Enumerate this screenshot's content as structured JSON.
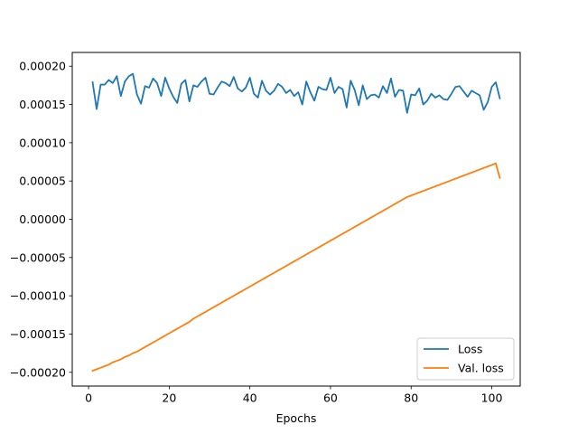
{
  "chart_data": {
    "type": "line",
    "title": "",
    "xlabel": "Epochs",
    "ylabel": "",
    "xlim": [
      -4.05,
      107.05
    ],
    "ylim": [
      -0.000218,
      0.000218
    ],
    "xticks": [
      0,
      20,
      40,
      60,
      80,
      100
    ],
    "xtick_labels": [
      "0",
      "20",
      "40",
      "60",
      "80",
      "100"
    ],
    "yticks": [
      -0.0002,
      -0.00015,
      -0.0001,
      -5e-05,
      0.0,
      5e-05,
      0.0001,
      0.00015,
      0.0002
    ],
    "ytick_labels": [
      "−0.00020",
      "−0.00015",
      "−0.00010",
      "−0.00005",
      "0.00000",
      "0.00005",
      "0.00010",
      "0.00015",
      "0.00020"
    ],
    "grid": false,
    "legend_position": "lower right",
    "x": [
      1,
      2,
      3,
      4,
      5,
      6,
      7,
      8,
      9,
      10,
      11,
      12,
      13,
      14,
      15,
      16,
      17,
      18,
      19,
      20,
      21,
      22,
      23,
      24,
      25,
      26,
      27,
      28,
      29,
      30,
      31,
      32,
      33,
      34,
      35,
      36,
      37,
      38,
      39,
      40,
      41,
      42,
      43,
      44,
      45,
      46,
      47,
      48,
      49,
      50,
      51,
      52,
      53,
      54,
      55,
      56,
      57,
      58,
      59,
      60,
      61,
      62,
      63,
      64,
      65,
      66,
      67,
      68,
      69,
      70,
      71,
      72,
      73,
      74,
      75,
      76,
      77,
      78,
      79,
      80,
      81,
      82,
      83,
      84,
      85,
      86,
      87,
      88,
      89,
      90,
      91,
      92,
      93,
      94,
      95,
      96,
      97,
      98,
      99,
      100,
      101,
      102
    ],
    "series": [
      {
        "name": "Loss",
        "color": "#1f77b4",
        "values": [
          0.000179,
          0.000144,
          0.000176,
          0.000176,
          0.000182,
          0.000178,
          0.000187,
          0.000161,
          0.00018,
          0.000187,
          0.00019,
          0.000163,
          0.000151,
          0.000174,
          0.000172,
          0.000184,
          0.000178,
          0.000161,
          0.000185,
          0.000171,
          0.00016,
          0.000152,
          0.000177,
          0.000182,
          0.000154,
          0.000175,
          0.000173,
          0.00018,
          0.000185,
          0.000164,
          0.000163,
          0.000172,
          0.00018,
          0.000178,
          0.000174,
          0.000186,
          0.000171,
          0.000167,
          0.000172,
          0.000185,
          0.000164,
          0.000159,
          0.000181,
          0.000168,
          0.000163,
          0.000168,
          0.000177,
          0.000173,
          0.000165,
          0.000169,
          0.000161,
          0.000166,
          0.00015,
          0.00018,
          0.000166,
          0.000155,
          0.000173,
          0.00017,
          0.000169,
          0.000185,
          0.000165,
          0.000173,
          0.00017,
          0.000146,
          0.000181,
          0.000169,
          0.000149,
          0.000175,
          0.000157,
          0.000162,
          0.000163,
          0.000159,
          0.000174,
          0.000165,
          0.000184,
          0.00016,
          0.000169,
          0.000168,
          0.000139,
          0.000163,
          0.000162,
          0.000171,
          0.00015,
          0.000155,
          0.000164,
          0.000159,
          0.000162,
          0.000157,
          0.000156,
          0.000164,
          0.000173,
          0.000174,
          0.000167,
          0.00016,
          0.000168,
          0.000165,
          0.000162,
          0.000143,
          0.000153,
          0.000173,
          0.000179,
          0.000158
        ]
      },
      {
        "name": "Val. loss",
        "color": "#ff7f0e",
        "values": [
          -0.000198,
          -0.000196,
          -0.000194,
          -0.000192,
          -0.00019,
          -0.000187,
          -0.000185,
          -0.000183,
          -0.00018,
          -0.000178,
          -0.000175,
          -0.000173,
          -0.00017,
          -0.000167,
          -0.000164,
          -0.000161,
          -0.000158,
          -0.000155,
          -0.000152,
          -0.000149,
          -0.000146,
          -0.000143,
          -0.00014,
          -0.000137,
          -0.000134,
          -0.00013,
          -0.000127,
          -0.000124,
          -0.000121,
          -0.000118,
          -0.000115,
          -0.000112,
          -0.000109,
          -0.000106,
          -0.000103,
          -0.0001,
          -9.7e-05,
          -9.4e-05,
          -9.1e-05,
          -8.8e-05,
          -8.5e-05,
          -8.2e-05,
          -7.9e-05,
          -7.6e-05,
          -7.3e-05,
          -7e-05,
          -6.7e-05,
          -6.4e-05,
          -6.1e-05,
          -5.8e-05,
          -5.5e-05,
          -5.2e-05,
          -4.9e-05,
          -4.6e-05,
          -4.3e-05,
          -4e-05,
          -3.7e-05,
          -3.4e-05,
          -3.1e-05,
          -2.8e-05,
          -2.5e-05,
          -2.2e-05,
          -1.9e-05,
          -1.6e-05,
          -1.3e-05,
          -1e-05,
          -7e-06,
          -4e-06,
          -1e-06,
          2e-06,
          5e-06,
          8e-06,
          1.1e-05,
          1.4e-05,
          1.7e-05,
          2e-05,
          2.3e-05,
          2.6e-05,
          2.9e-05,
          3.1e-05,
          3.3e-05,
          3.5e-05,
          3.7e-05,
          3.9e-05,
          4.1e-05,
          4.3e-05,
          4.5e-05,
          4.7e-05,
          4.9e-05,
          5.1e-05,
          5.3e-05,
          5.5e-05,
          5.7e-05,
          5.9e-05,
          6.1e-05,
          6.3e-05,
          6.5e-05,
          6.7e-05,
          6.9e-05,
          7.1e-05,
          7.3e-05,
          5.4e-05
        ]
      }
    ]
  }
}
